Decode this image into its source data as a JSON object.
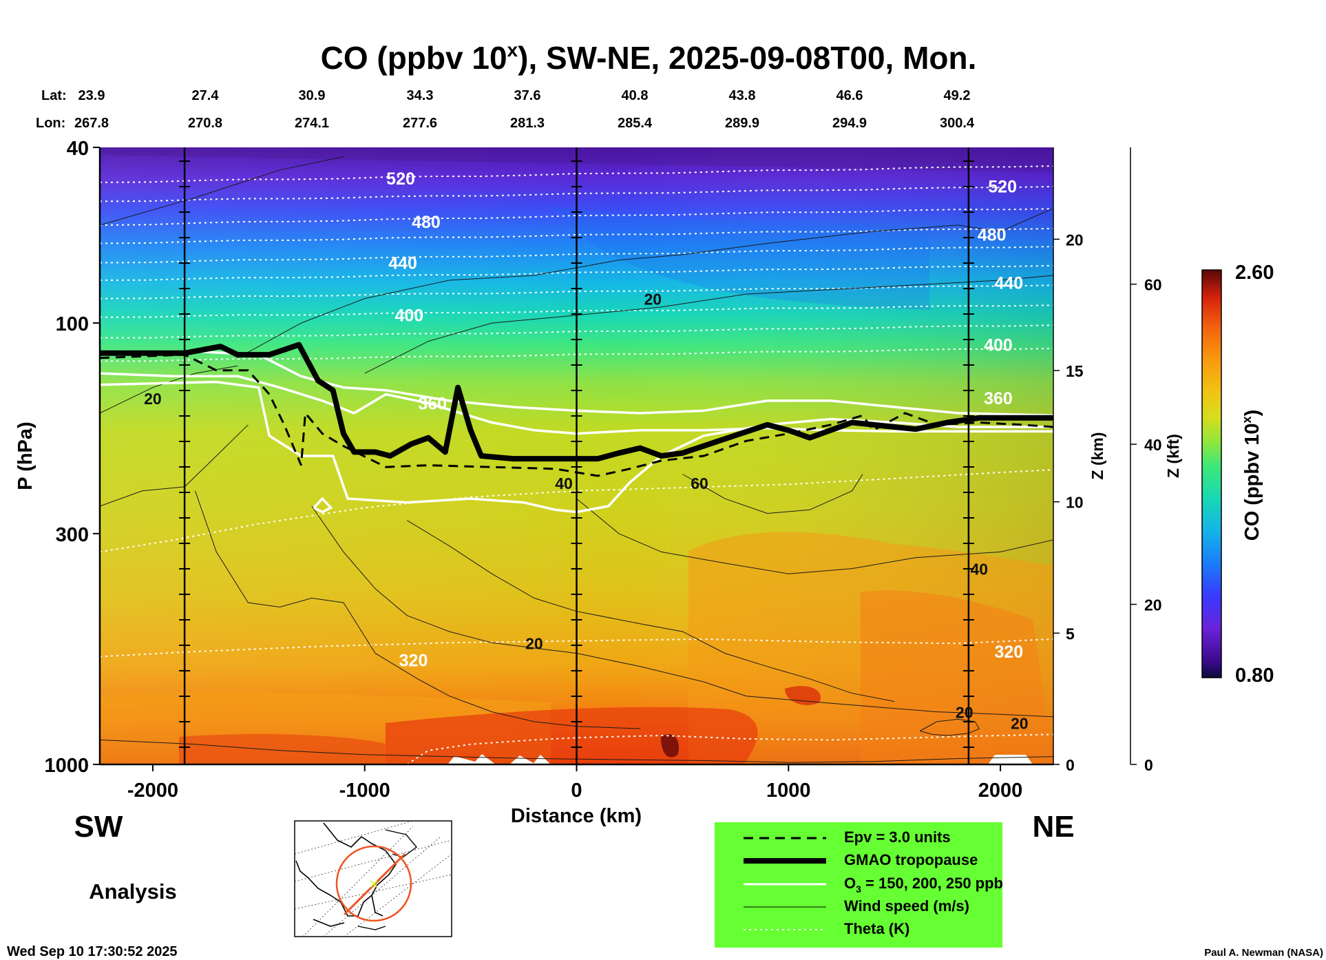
{
  "chart_data": {
    "type": "heatmap",
    "title": "CO (ppbv 10",
    "title_sup": "x",
    "title_rest": "), SW-NE, 2025-09-08T00, Mon.",
    "xlabel": "Distance (km)",
    "ylabel": "P (hPa)",
    "z_km_label": "Z (km)",
    "z_kft_label": "Z (kft)",
    "colorbar_label": "CO (ppbv 10",
    "colorbar_label_sup": "x",
    "colorbar_label_end": ")",
    "colorbar_range": [
      0.8,
      2.6
    ],
    "colorbar_max_label": "2.60",
    "colorbar_min_label": "0.80",
    "xlim": [
      -2250,
      2250
    ],
    "ylim_hpa": [
      1000,
      40
    ],
    "x_ticks": [
      "-2000",
      "-1000",
      "0",
      "1000",
      "2000"
    ],
    "x_tick_values": [
      -2000,
      -1000,
      0,
      1000,
      2000
    ],
    "p_ticks": [
      "40",
      "100",
      "300",
      "1000"
    ],
    "p_tick_values": [
      40,
      100,
      300,
      1000
    ],
    "z_km_ticks": [
      "20",
      "15",
      "10",
      "5",
      "0"
    ],
    "z_km_tick_values": [
      20,
      15,
      10,
      5,
      0
    ],
    "z_kft_ticks": [
      "60",
      "40",
      "20",
      "0"
    ],
    "z_kft_tick_values": [
      60,
      40,
      20,
      0
    ],
    "lat_label": "Lat:",
    "lon_label": "Lon:",
    "lat_values": [
      "23.9",
      "27.4",
      "30.9",
      "34.3",
      "37.6",
      "40.8",
      "43.8",
      "46.6",
      "49.2"
    ],
    "lon_values": [
      "267.8",
      "270.8",
      "274.1",
      "277.6",
      "281.3",
      "285.4",
      "289.9",
      "294.9",
      "300.4"
    ],
    "vertical_markers_km": [
      -1850,
      0,
      1850
    ],
    "theta_labels": [
      {
        "text": "520",
        "x_km": -830,
        "p": 47
      },
      {
        "text": "480",
        "x_km": -710,
        "p": 59
      },
      {
        "text": "440",
        "x_km": -820,
        "p": 73
      },
      {
        "text": "400",
        "x_km": -790,
        "p": 96
      },
      {
        "text": "360",
        "x_km": -680,
        "p": 152
      },
      {
        "text": "320",
        "x_km": -770,
        "p": 580
      },
      {
        "text": "520",
        "x_km": 2010,
        "p": 49
      },
      {
        "text": "480",
        "x_km": 1960,
        "p": 63
      },
      {
        "text": "440",
        "x_km": 2040,
        "p": 81
      },
      {
        "text": "400",
        "x_km": 1990,
        "p": 112
      },
      {
        "text": "360",
        "x_km": 1990,
        "p": 148
      },
      {
        "text": "320",
        "x_km": 2040,
        "p": 555
      }
    ],
    "wind_labels": [
      {
        "text": "20",
        "x_km": -2000,
        "p": 148
      },
      {
        "text": "20",
        "x_km": 360,
        "p": 88
      },
      {
        "text": "40",
        "x_km": -60,
        "p": 230
      },
      {
        "text": "60",
        "x_km": 580,
        "p": 230
      },
      {
        "text": "40",
        "x_km": 1900,
        "p": 360
      },
      {
        "text": "20",
        "x_km": -200,
        "p": 530
      },
      {
        "text": "20",
        "x_km": 1830,
        "p": 760
      },
      {
        "text": "20",
        "x_km": 2090,
        "p": 805
      }
    ],
    "tropopause": [
      [
        -2250,
        117
      ],
      [
        -1850,
        117
      ],
      [
        -1680,
        113
      ],
      [
        -1600,
        118
      ],
      [
        -1450,
        118
      ],
      [
        -1310,
        112
      ],
      [
        -1220,
        135
      ],
      [
        -1150,
        142
      ],
      [
        -1100,
        178
      ],
      [
        -1050,
        196
      ],
      [
        -950,
        196
      ],
      [
        -880,
        200
      ],
      [
        -780,
        188
      ],
      [
        -700,
        182
      ],
      [
        -620,
        196
      ],
      [
        -560,
        140
      ],
      [
        -500,
        175
      ],
      [
        -450,
        200
      ],
      [
        -300,
        203
      ],
      [
        -100,
        203
      ],
      [
        0,
        203
      ],
      [
        100,
        203
      ],
      [
        200,
        197
      ],
      [
        300,
        192
      ],
      [
        400,
        200
      ],
      [
        500,
        197
      ],
      [
        700,
        183
      ],
      [
        900,
        170
      ],
      [
        1000,
        175
      ],
      [
        1100,
        182
      ],
      [
        1300,
        168
      ],
      [
        1500,
        172
      ],
      [
        1600,
        174
      ],
      [
        1750,
        168
      ],
      [
        1900,
        164
      ],
      [
        2250,
        164
      ]
    ],
    "legend": [
      {
        "style": "dash",
        "label": "Epv = 3.0 units"
      },
      {
        "style": "thick",
        "label": "GMAO tropopause"
      },
      {
        "style": "white",
        "label": "O",
        "sub": "3",
        "label_rest": " = 150, 200, 250 ppb"
      },
      {
        "style": "thin",
        "label": "Wind speed (m/s)"
      },
      {
        "style": "dotted",
        "label": "Theta (K)"
      }
    ]
  },
  "direction_left": "SW",
  "direction_right": "NE",
  "analysis_label": "Analysis",
  "timestamp": "Wed Sep 10 17:30:52 2025",
  "credit": "Paul A. Newman (NASA)",
  "colors": {
    "legend_bg": "#66ff33",
    "map_path": "#ee5522",
    "map_center": "#ccff33"
  }
}
